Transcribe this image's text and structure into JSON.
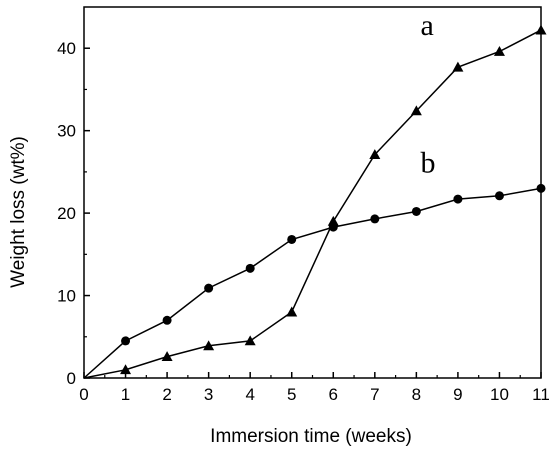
{
  "chart_data": {
    "type": "line",
    "title": "",
    "xlabel": "Immersion time (weeks)",
    "ylabel": "Weight loss (wt%)",
    "xlim": [
      0,
      11
    ],
    "ylim": [
      0,
      45
    ],
    "x_ticks": [
      0,
      1,
      2,
      3,
      4,
      5,
      6,
      7,
      8,
      9,
      10,
      11
    ],
    "y_ticks": [
      0,
      10,
      20,
      30,
      40
    ],
    "grid": false,
    "legend": "none",
    "series": [
      {
        "name": "a",
        "marker": "triangle",
        "color": "#000000",
        "x": [
          0,
          1,
          2,
          3,
          4,
          5,
          6,
          7,
          8,
          9,
          10,
          11
        ],
        "y": [
          0,
          1.0,
          2.6,
          3.9,
          4.5,
          8.0,
          19.0,
          27.1,
          32.4,
          37.7,
          39.6,
          42.2
        ]
      },
      {
        "name": "b",
        "marker": "circle",
        "color": "#000000",
        "x": [
          0,
          1,
          2,
          3,
          4,
          5,
          6,
          7,
          8,
          9,
          10,
          11
        ],
        "y": [
          0,
          4.5,
          7.0,
          10.9,
          13.3,
          16.8,
          18.3,
          19.3,
          20.2,
          21.7,
          22.1,
          23.0
        ]
      }
    ]
  }
}
